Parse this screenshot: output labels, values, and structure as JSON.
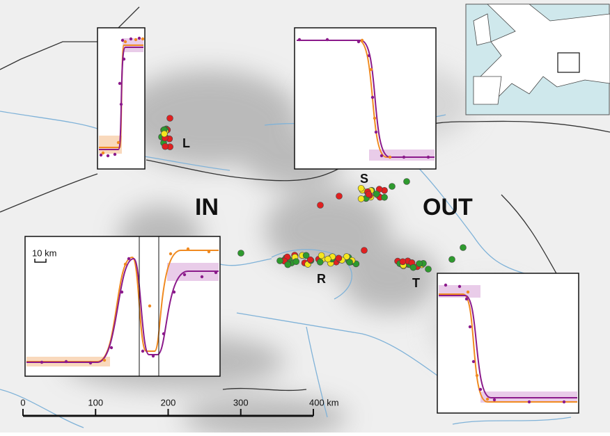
{
  "region_labels": {
    "in": "IN",
    "out": "OUT"
  },
  "transect_labels": {
    "l": "L",
    "s": "S",
    "r": "R",
    "t": "T"
  },
  "inset_scale": "10 km",
  "scale_bar": {
    "labels": [
      "0",
      "100",
      "200",
      "300",
      "400 km"
    ]
  }
}
